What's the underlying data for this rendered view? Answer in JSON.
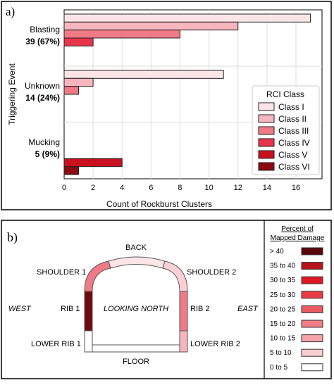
{
  "chart_data": [
    {
      "type": "bar",
      "orientation": "horizontal",
      "panel_label": "a)",
      "title": "",
      "xlabel": "Count of Rockburst Clusters",
      "ylabel": "Triggering Event",
      "xlim": [
        0,
        17.8
      ],
      "xticks": [
        "0",
        "2",
        "4",
        "6",
        "8",
        "10",
        "12",
        "14",
        "16"
      ],
      "grid": true,
      "legend": {
        "title": "RCI Class",
        "position": "lower-right"
      },
      "categories": [
        {
          "name": "Blasting",
          "count": "39 (67%)"
        },
        {
          "name": "Unknown",
          "count": "14 (24%)"
        },
        {
          "name": "Mucking",
          "count": "5 (9%)"
        }
      ],
      "series": [
        {
          "name": "Class I",
          "color": "#fde5e7",
          "values": [
            17,
            11,
            0
          ]
        },
        {
          "name": "Class II",
          "color": "#f7b6bd",
          "values": [
            12,
            2,
            0
          ]
        },
        {
          "name": "Class III",
          "color": "#f07a86",
          "values": [
            8,
            1,
            0
          ]
        },
        {
          "name": "Class IV",
          "color": "#e8344a",
          "values": [
            2,
            0,
            0
          ]
        },
        {
          "name": "Class V",
          "color": "#c8101e",
          "values": [
            0,
            0,
            4
          ]
        },
        {
          "name": "Class VI",
          "color": "#8a0a12",
          "values": [
            0,
            0,
            1
          ]
        }
      ]
    },
    {
      "type": "diagram",
      "panel_label": "b)",
      "labels": {
        "back": "BACK",
        "shoulder1": "SHOULDER 1",
        "shoulder2": "SHOULDER 2",
        "west": "WEST",
        "east": "EAST",
        "rib1": "RIB 1",
        "rib2": "RIB 2",
        "looking": "LOOKING NORTH",
        "lowerrib1": "LOWER RIB 1",
        "lowerrib2": "LOWER RIB 2",
        "floor": "FLOOR"
      },
      "segment_colors": {
        "back": "#fde5e7",
        "shoulder1": "#f07a86",
        "shoulder2": "#fbd0d5",
        "rib1": "#6e0a0e",
        "rib2": "#f07a86",
        "lowerrib1": "#ffffff",
        "lowerrib2": "#f7b6bd",
        "floor": "#ffffff"
      },
      "legend": {
        "title_line1": "Percent of",
        "title_line2": "Mapped Damage",
        "items": [
          {
            "label": "> 40",
            "color": "#5a0608"
          },
          {
            "label": "35 to 40",
            "color": "#b8121c"
          },
          {
            "label": "30 to 35",
            "color": "#e01824"
          },
          {
            "label": "25 to 30",
            "color": "#ea3a44"
          },
          {
            "label": "20 to 25",
            "color": "#ee5a62"
          },
          {
            "label": "15 to 20",
            "color": "#f17e84"
          },
          {
            "label": "10 to 15",
            "color": "#f5a3a7"
          },
          {
            "label": "5 to 10",
            "color": "#f9cfd1"
          },
          {
            "label": "0 to 5",
            "color": "#ffffff"
          }
        ]
      }
    }
  ]
}
